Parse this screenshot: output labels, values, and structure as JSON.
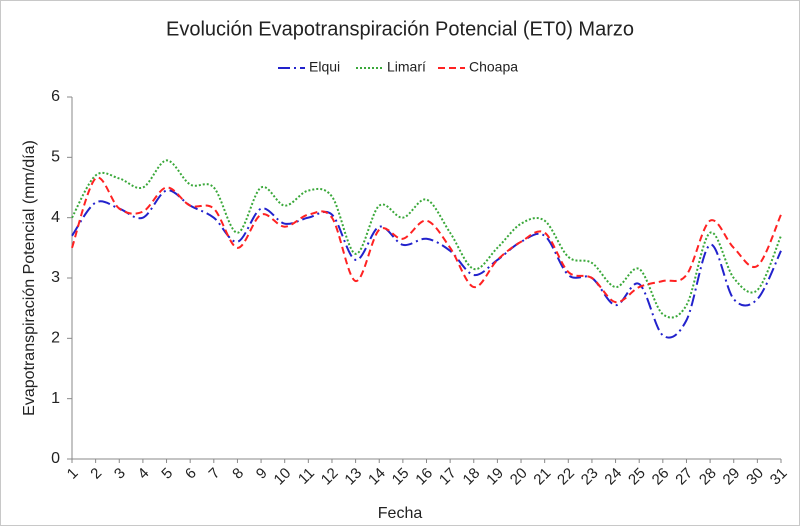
{
  "chart_data": {
    "type": "line",
    "title": "Evolución Evapotranspiración Potencial (ET0) Marzo",
    "x_label": "Fecha",
    "y_label": "Evapotranspiración Potencial (mm/día)",
    "categories": [
      "1",
      "2",
      "3",
      "4",
      "5",
      "6",
      "7",
      "8",
      "9",
      "10",
      "11",
      "12",
      "13",
      "14",
      "15",
      "16",
      "17",
      "18",
      "19",
      "20",
      "21",
      "22",
      "23",
      "24",
      "25",
      "26",
      "27",
      "28",
      "29",
      "30",
      "31"
    ],
    "series": [
      {
        "name": "Elqui",
        "color": "#2222cc",
        "dash": "12,4,2,4",
        "values": [
          3.7,
          4.25,
          4.15,
          4.0,
          4.45,
          4.2,
          4.0,
          3.6,
          4.15,
          3.9,
          4.0,
          4.05,
          3.3,
          3.85,
          3.55,
          3.65,
          3.45,
          3.05,
          3.3,
          3.6,
          3.7,
          3.05,
          3.0,
          2.55,
          2.9,
          2.05,
          2.3,
          3.55,
          2.65,
          2.65,
          3.45
        ]
      },
      {
        "name": "Limarí",
        "color": "#3aa83a",
        "dash": "2,2",
        "values": [
          4.0,
          4.7,
          4.65,
          4.5,
          4.95,
          4.55,
          4.5,
          3.75,
          4.5,
          4.2,
          4.45,
          4.35,
          3.4,
          4.2,
          4.0,
          4.3,
          3.75,
          3.15,
          3.5,
          3.9,
          3.95,
          3.35,
          3.25,
          2.85,
          3.15,
          2.4,
          2.55,
          3.75,
          3.0,
          2.8,
          3.7
        ]
      },
      {
        "name": "Choapa",
        "color": "#ff2222",
        "dash": "7,4",
        "values": [
          3.5,
          4.65,
          4.15,
          4.1,
          4.5,
          4.2,
          4.15,
          3.5,
          4.05,
          3.85,
          4.05,
          4.0,
          2.95,
          3.8,
          3.65,
          3.95,
          3.5,
          2.85,
          3.3,
          3.6,
          3.75,
          3.1,
          3.0,
          2.6,
          2.85,
          2.95,
          3.05,
          3.95,
          3.5,
          3.2,
          4.05
        ]
      }
    ],
    "ylim": [
      0,
      6
    ],
    "yticks": [
      0,
      1,
      2,
      3,
      4,
      5,
      6
    ],
    "smooth": true,
    "legend": "top"
  }
}
